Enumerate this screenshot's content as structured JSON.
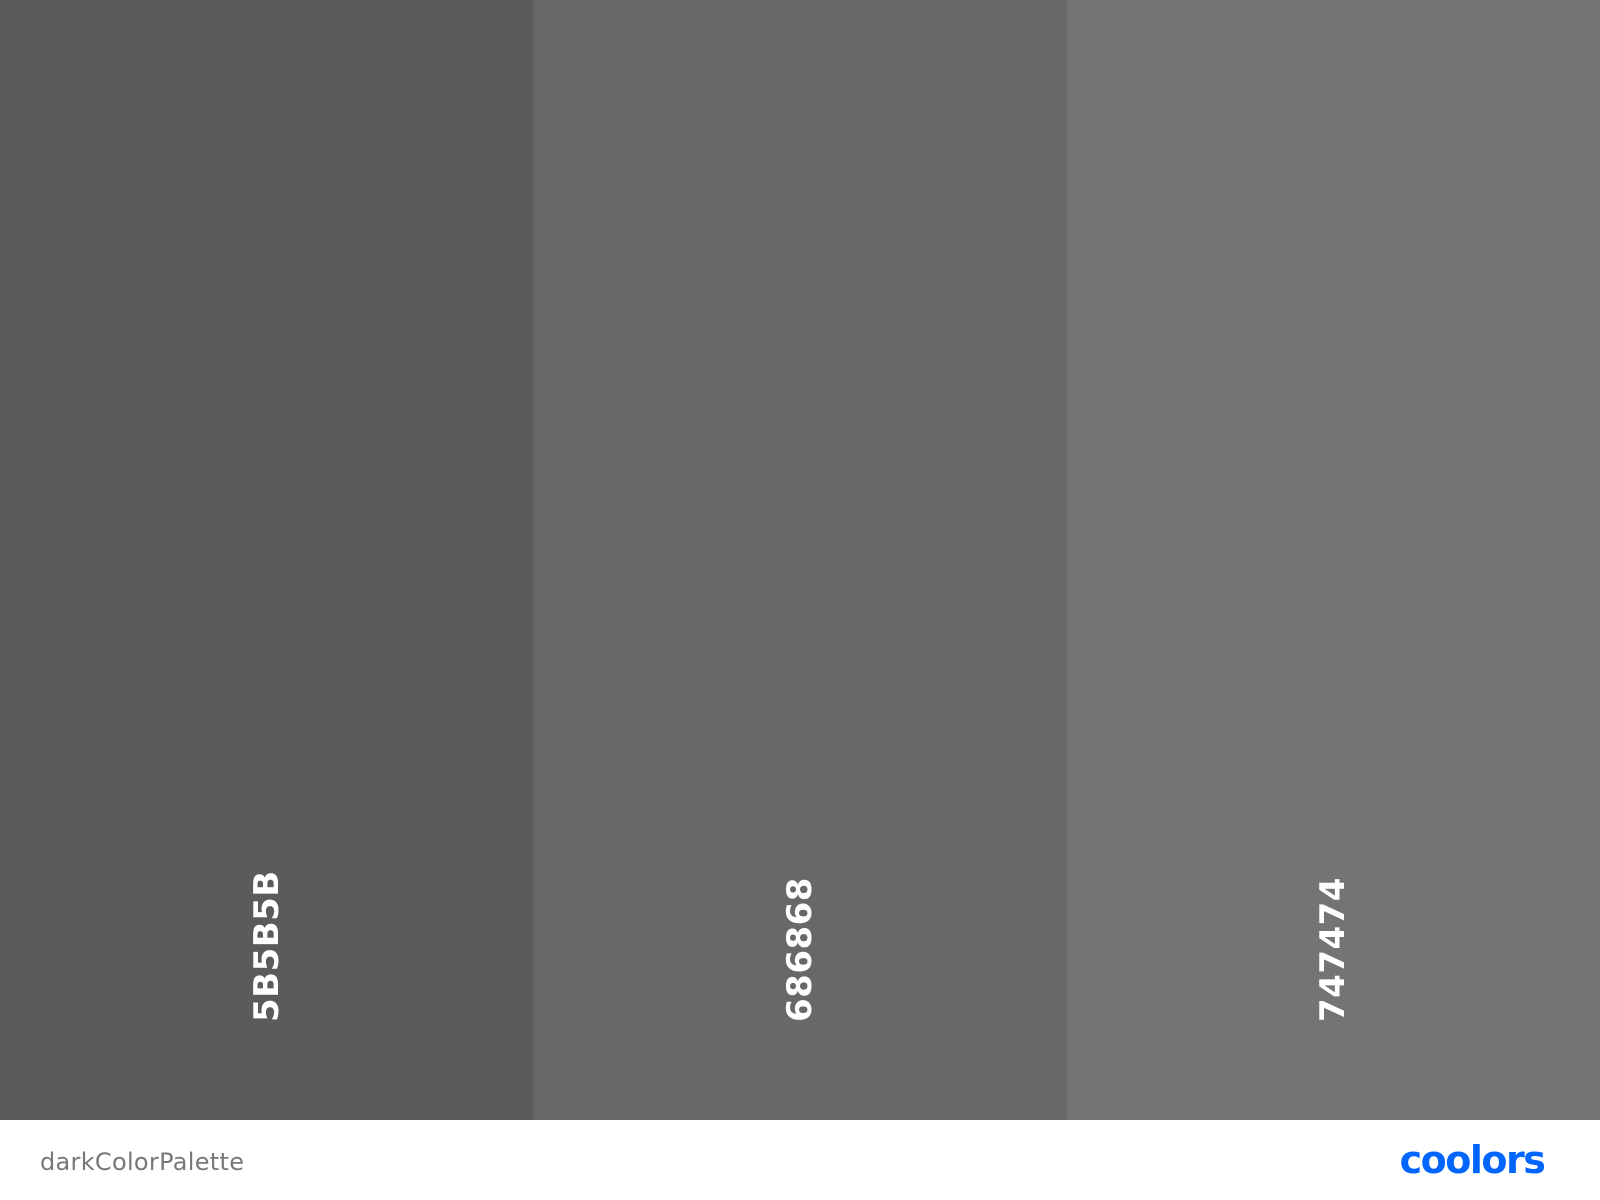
{
  "palette": {
    "name": "darkColorPalette",
    "swatches": [
      {
        "hex": "5B5B5B",
        "color": "#5B5B5B"
      },
      {
        "hex": "686868",
        "color": "#686868"
      },
      {
        "hex": "747474",
        "color": "#747474"
      }
    ]
  },
  "brand": {
    "logo_text": "coolors",
    "color": "#0066FF"
  }
}
